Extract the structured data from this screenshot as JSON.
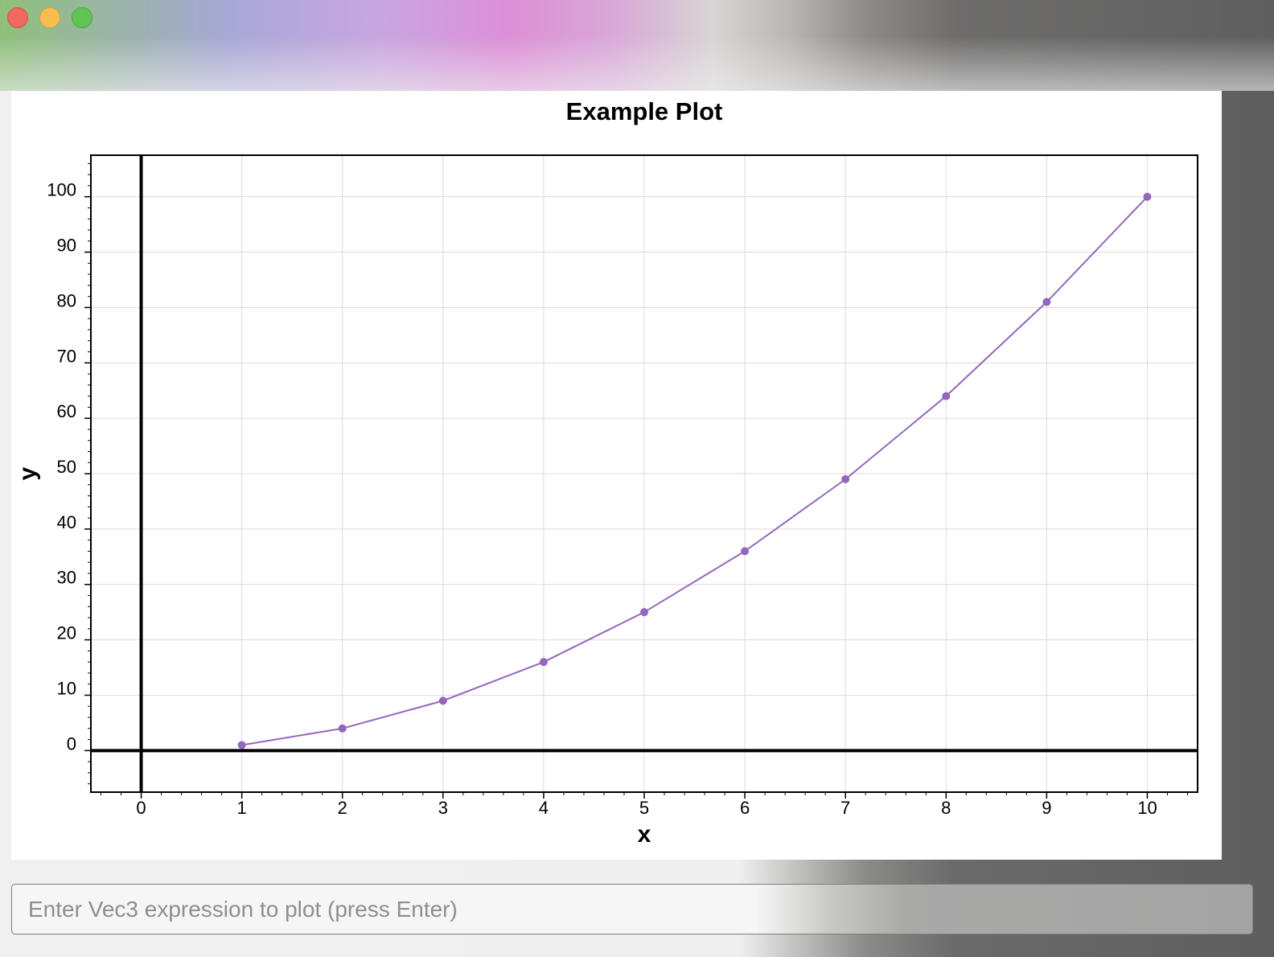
{
  "window": {
    "controls": [
      {
        "name": "close",
        "color": "#ee6a5e"
      },
      {
        "name": "minimize",
        "color": "#f5be4f"
      },
      {
        "name": "zoom",
        "color": "#61c554"
      }
    ]
  },
  "chart_data": {
    "type": "line",
    "title": "Example Plot",
    "xlabel": "x",
    "ylabel": "y",
    "x": [
      1,
      2,
      3,
      4,
      5,
      6,
      7,
      8,
      9,
      10
    ],
    "series": [
      {
        "values": [
          1,
          4,
          9,
          16,
          25,
          36,
          49,
          64,
          81,
          100
        ],
        "color": "#9467bd",
        "markers": true
      }
    ],
    "xlim": [
      -0.5,
      10.5
    ],
    "ylim": [
      -7.5,
      107.5
    ],
    "xticks": [
      0,
      1,
      2,
      3,
      4,
      5,
      6,
      7,
      8,
      9,
      10
    ],
    "yticks": [
      0,
      10,
      20,
      30,
      40,
      50,
      60,
      70,
      80,
      90,
      100
    ],
    "grid": true,
    "axis_lines_at_zero": true
  },
  "input": {
    "value": "",
    "placeholder": "Enter Vec3 expression to plot (press Enter)"
  }
}
